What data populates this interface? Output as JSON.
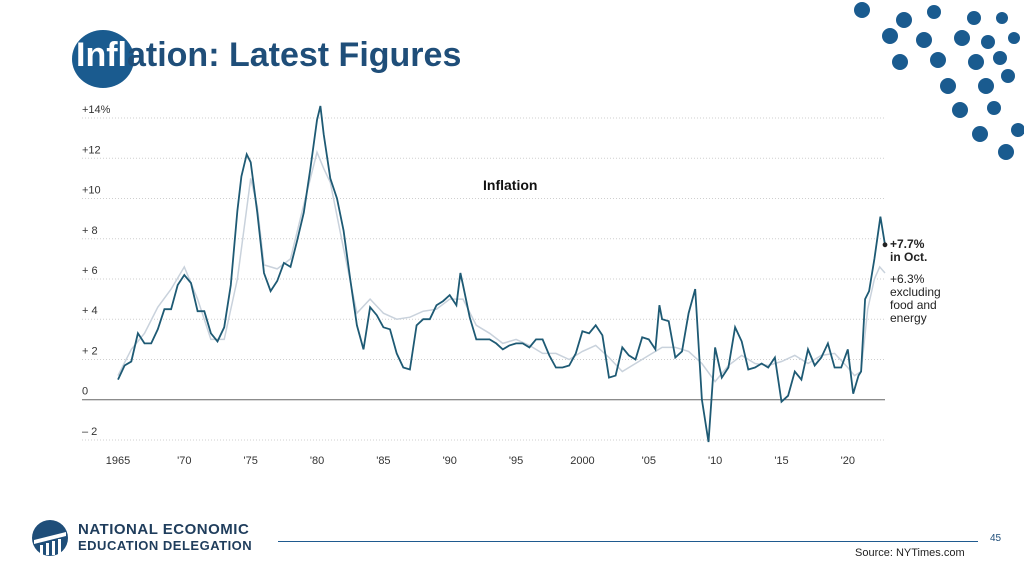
{
  "slide": {
    "title_first": "Infl",
    "title_rest": "ation: Latest Figures",
    "page_number": "45",
    "source": "Source: NYTimes.com",
    "logo_line1": "NATIONAL ECONOMIC",
    "logo_line2": "EDUCATION DELEGATION"
  },
  "colors": {
    "headline": "#1e5a74",
    "core": "#c9d2dc",
    "brand": "#1f4e79",
    "accent_dots": "#1a5b8f"
  },
  "chart_data": {
    "type": "line",
    "title": "Inflation",
    "x_range": [
      1965,
      2022.8
    ],
    "ylim": [
      -2.5,
      14.5
    ],
    "x_ticks": [
      {
        "value": 1965,
        "label": "1965"
      },
      {
        "value": 1970,
        "label": "'70"
      },
      {
        "value": 1975,
        "label": "'75"
      },
      {
        "value": 1980,
        "label": "'80"
      },
      {
        "value": 1985,
        "label": "'85"
      },
      {
        "value": 1990,
        "label": "'90"
      },
      {
        "value": 1995,
        "label": "'95"
      },
      {
        "value": 2000,
        "label": "2000"
      },
      {
        "value": 2005,
        "label": "'05"
      },
      {
        "value": 2010,
        "label": "'10"
      },
      {
        "value": 2015,
        "label": "'15"
      },
      {
        "value": 2020,
        "label": "'20"
      }
    ],
    "y_ticks": [
      {
        "value": 14,
        "label": "+14%"
      },
      {
        "value": 12,
        "label": "+12"
      },
      {
        "value": 10,
        "label": "+10"
      },
      {
        "value": 8,
        "label": "+ 8"
      },
      {
        "value": 6,
        "label": "+ 6"
      },
      {
        "value": 4,
        "label": "+ 4"
      },
      {
        "value": 2,
        "label": "+ 2"
      },
      {
        "value": 0,
        "label": "0"
      },
      {
        "value": -2,
        "label": "– 2"
      }
    ],
    "annotations": {
      "headline_line1": "+7.7%",
      "headline_line2": "in Oct.",
      "core_line1": "+6.3%",
      "core_line2": "excluding",
      "core_line3": "food and",
      "core_line4": "energy"
    },
    "series": [
      {
        "key": "headline",
        "x": [
          1965.0,
          1965.5,
          1966.0,
          1966.5,
          1967.0,
          1967.5,
          1968.0,
          1968.5,
          1969.0,
          1969.5,
          1970.0,
          1970.5,
          1971.0,
          1971.5,
          1972.0,
          1972.5,
          1973.0,
          1973.5,
          1974.0,
          1974.3,
          1974.7,
          1975.0,
          1975.5,
          1976.0,
          1976.5,
          1977.0,
          1977.5,
          1978.0,
          1978.5,
          1979.0,
          1979.5,
          1980.0,
          1980.25,
          1980.5,
          1981.0,
          1981.5,
          1982.0,
          1982.5,
          1983.0,
          1983.5,
          1984.0,
          1984.5,
          1985.0,
          1985.5,
          1986.0,
          1986.5,
          1987.0,
          1987.5,
          1988.0,
          1988.5,
          1989.0,
          1989.5,
          1990.0,
          1990.5,
          1990.8,
          1991.0,
          1991.5,
          1992.0,
          1992.5,
          1993.0,
          1993.5,
          1994.0,
          1994.5,
          1995.0,
          1995.5,
          1996.0,
          1996.5,
          1997.0,
          1997.5,
          1998.0,
          1998.5,
          1999.0,
          1999.5,
          2000.0,
          2000.5,
          2001.0,
          2001.5,
          2002.0,
          2002.5,
          2003.0,
          2003.5,
          2004.0,
          2004.5,
          2005.0,
          2005.5,
          2005.8,
          2006.0,
          2006.5,
          2007.0,
          2007.5,
          2008.0,
          2008.5,
          2009.0,
          2009.5,
          2010.0,
          2010.5,
          2011.0,
          2011.5,
          2012.0,
          2012.5,
          2013.0,
          2013.5,
          2014.0,
          2014.5,
          2015.0,
          2015.5,
          2016.0,
          2016.5,
          2017.0,
          2017.5,
          2018.0,
          2018.5,
          2019.0,
          2019.5,
          2020.0,
          2020.4,
          2020.8,
          2021.0,
          2021.3,
          2021.6,
          2022.0,
          2022.45,
          2022.8
        ],
        "y": [
          1.0,
          1.7,
          1.9,
          3.3,
          2.8,
          2.8,
          3.5,
          4.5,
          4.5,
          5.7,
          6.2,
          5.8,
          4.4,
          4.4,
          3.3,
          2.9,
          3.6,
          5.7,
          9.4,
          11.1,
          12.2,
          11.8,
          9.3,
          6.3,
          5.4,
          5.9,
          6.8,
          6.6,
          7.9,
          9.3,
          11.5,
          13.9,
          14.6,
          13.2,
          11.0,
          10.0,
          8.4,
          6.0,
          3.7,
          2.5,
          4.6,
          4.2,
          3.6,
          3.5,
          2.3,
          1.6,
          1.5,
          3.7,
          4.0,
          4.0,
          4.7,
          4.9,
          5.2,
          4.7,
          6.3,
          5.7,
          4.1,
          3.0,
          3.0,
          3.0,
          2.8,
          2.5,
          2.7,
          2.8,
          2.8,
          2.6,
          3.0,
          3.0,
          2.2,
          1.6,
          1.6,
          1.7,
          2.3,
          3.4,
          3.3,
          3.7,
          3.2,
          1.1,
          1.2,
          2.6,
          2.2,
          2.0,
          3.1,
          3.0,
          2.5,
          4.7,
          4.0,
          3.9,
          2.1,
          2.4,
          4.3,
          5.5,
          0.0,
          -2.1,
          2.6,
          1.1,
          1.6,
          3.6,
          2.9,
          1.5,
          1.6,
          1.8,
          1.6,
          2.1,
          -0.1,
          0.2,
          1.4,
          1.0,
          2.5,
          1.7,
          2.1,
          2.8,
          1.6,
          1.6,
          2.5,
          0.3,
          1.2,
          1.4,
          5.0,
          5.4,
          7.0,
          9.1,
          7.7
        ]
      },
      {
        "key": "core",
        "x": [
          1965.0,
          1966.0,
          1967.0,
          1968.0,
          1969.0,
          1970.0,
          1971.0,
          1972.0,
          1973.0,
          1974.0,
          1975.0,
          1975.5,
          1976.0,
          1977.0,
          1978.0,
          1979.0,
          1980.0,
          1980.5,
          1981.0,
          1982.0,
          1983.0,
          1984.0,
          1985.0,
          1986.0,
          1987.0,
          1988.0,
          1989.0,
          1990.0,
          1991.0,
          1992.0,
          1993.0,
          1994.0,
          1995.0,
          1996.0,
          1997.0,
          1998.0,
          1999.0,
          2000.0,
          2001.0,
          2002.0,
          2003.0,
          2004.0,
          2005.0,
          2006.0,
          2007.0,
          2008.0,
          2009.0,
          2010.0,
          2011.0,
          2012.0,
          2013.0,
          2014.0,
          2015.0,
          2016.0,
          2017.0,
          2018.0,
          2019.0,
          2020.0,
          2020.5,
          2021.0,
          2021.5,
          2022.0,
          2022.4,
          2022.8
        ],
        "y": [
          1.2,
          2.5,
          3.3,
          4.6,
          5.5,
          6.6,
          5.0,
          3.0,
          3.0,
          6.0,
          11.0,
          9.6,
          6.7,
          6.5,
          7.0,
          9.7,
          12.3,
          11.5,
          10.8,
          7.5,
          4.3,
          5.0,
          4.3,
          4.0,
          4.1,
          4.4,
          4.5,
          5.0,
          5.0,
          3.7,
          3.3,
          2.8,
          3.0,
          2.7,
          2.3,
          2.3,
          2.0,
          2.4,
          2.7,
          2.1,
          1.4,
          1.8,
          2.2,
          2.6,
          2.6,
          2.4,
          1.8,
          0.9,
          1.7,
          2.2,
          1.8,
          1.7,
          1.9,
          2.2,
          1.8,
          2.2,
          2.3,
          1.6,
          1.2,
          1.4,
          4.5,
          6.0,
          6.6,
          6.3
        ]
      }
    ]
  }
}
